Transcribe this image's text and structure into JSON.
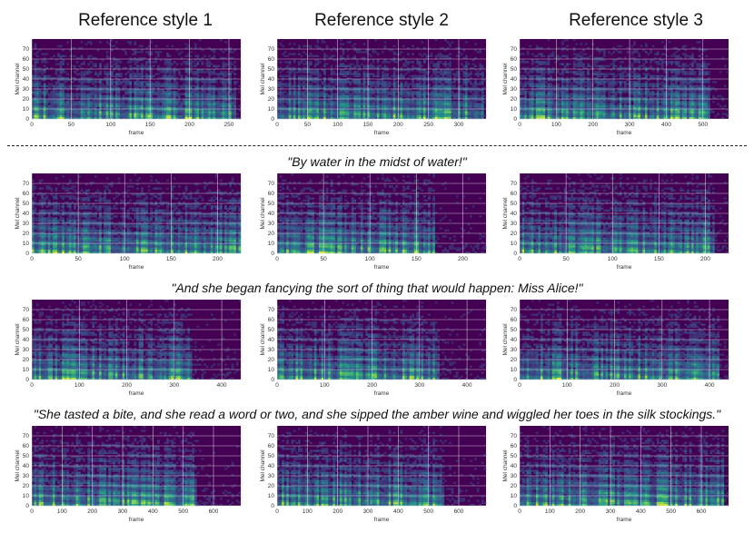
{
  "column_titles": [
    "Reference style 1",
    "Reference style 2",
    "Reference style 3"
  ],
  "captions": [
    "\"By water in the midst of water!\"",
    "\"And she began fancying the sort of thing that would happen: Miss Alice!\"",
    "\"She tasted a bite, and she read a word or two, and she sipped the amber wine and wiggled her toes in the silk stockings.\""
  ],
  "colors": {
    "background": "#440154",
    "grid": "#ffffff",
    "colormap": [
      "#440154",
      "#3b528b",
      "#21918c",
      "#5ec962",
      "#fde725"
    ]
  },
  "chart_data": [
    {
      "type": "heatmap",
      "id": "ref1",
      "row": "reference",
      "column": 1,
      "xlabel": "frame",
      "ylabel": "Mel channel",
      "xlim": [
        0,
        265
      ],
      "ylim": [
        0,
        80
      ],
      "xticks": [
        0,
        50,
        100,
        150,
        200,
        250
      ],
      "yticks": [
        0,
        10,
        20,
        30,
        40,
        50,
        60,
        70
      ],
      "seed": 11
    },
    {
      "type": "heatmap",
      "id": "ref2",
      "row": "reference",
      "column": 2,
      "xlabel": "frame",
      "ylabel": "Mel channel",
      "xlim": [
        0,
        345
      ],
      "ylim": [
        0,
        80
      ],
      "xticks": [
        0,
        50,
        100,
        150,
        200,
        250,
        300
      ],
      "yticks": [
        0,
        10,
        20,
        30,
        40,
        50,
        60,
        70
      ],
      "seed": 23
    },
    {
      "type": "heatmap",
      "id": "ref3",
      "row": "reference",
      "column": 3,
      "xlabel": "frame",
      "ylabel": "Mel channel",
      "xlim": [
        0,
        570
      ],
      "ylim": [
        0,
        80
      ],
      "xticks": [
        0,
        100,
        200,
        300,
        400,
        500
      ],
      "yticks": [
        0,
        10,
        20,
        30,
        40,
        50,
        60,
        70
      ],
      "seed": 37
    },
    {
      "type": "heatmap",
      "id": "s1c1",
      "row": "sentence 1",
      "column": 1,
      "xlabel": "frame",
      "ylabel": "Mel channel",
      "xlim": [
        0,
        225
      ],
      "ylim": [
        0,
        80
      ],
      "xticks": [
        0,
        50,
        100,
        150,
        200
      ],
      "yticks": [
        0,
        10,
        20,
        30,
        40,
        50,
        60,
        70
      ],
      "seed": 41
    },
    {
      "type": "heatmap",
      "id": "s1c2",
      "row": "sentence 1",
      "column": 2,
      "xlabel": "frame",
      "ylabel": "Mel channel",
      "xlim": [
        0,
        225
      ],
      "ylim": [
        0,
        80
      ],
      "xticks": [
        0,
        50,
        100,
        150,
        200
      ],
      "yticks": [
        0,
        10,
        20,
        30,
        40,
        50,
        60,
        70
      ],
      "seed": 53
    },
    {
      "type": "heatmap",
      "id": "s1c3",
      "row": "sentence 1",
      "column": 3,
      "xlabel": "frame",
      "ylabel": "Mel channel",
      "xlim": [
        0,
        225
      ],
      "ylim": [
        0,
        80
      ],
      "xticks": [
        0,
        50,
        100,
        150,
        200
      ],
      "yticks": [
        0,
        10,
        20,
        30,
        40,
        50,
        60,
        70
      ],
      "seed": 67
    },
    {
      "type": "heatmap",
      "id": "s2c1",
      "row": "sentence 2",
      "column": 1,
      "xlabel": "frame",
      "ylabel": "Mel channel",
      "xlim": [
        0,
        440
      ],
      "ylim": [
        0,
        80
      ],
      "xticks": [
        0,
        100,
        200,
        300,
        400
      ],
      "yticks": [
        0,
        10,
        20,
        30,
        40,
        50,
        60,
        70
      ],
      "seed": 71
    },
    {
      "type": "heatmap",
      "id": "s2c2",
      "row": "sentence 2",
      "column": 2,
      "xlabel": "frame",
      "ylabel": "Mel channel",
      "xlim": [
        0,
        440
      ],
      "ylim": [
        0,
        80
      ],
      "xticks": [
        0,
        100,
        200,
        300,
        400
      ],
      "yticks": [
        0,
        10,
        20,
        30,
        40,
        50,
        60,
        70
      ],
      "seed": 83
    },
    {
      "type": "heatmap",
      "id": "s2c3",
      "row": "sentence 2",
      "column": 3,
      "xlabel": "frame",
      "ylabel": "Mel channel",
      "xlim": [
        0,
        440
      ],
      "ylim": [
        0,
        80
      ],
      "xticks": [
        0,
        100,
        200,
        300,
        400
      ],
      "yticks": [
        0,
        10,
        20,
        30,
        40,
        50,
        60,
        70
      ],
      "seed": 97
    },
    {
      "type": "heatmap",
      "id": "s3c1",
      "row": "sentence 3",
      "column": 1,
      "xlabel": "frame",
      "ylabel": "Mel channel",
      "xlim": [
        0,
        690
      ],
      "ylim": [
        0,
        80
      ],
      "xticks": [
        0,
        100,
        200,
        300,
        400,
        500,
        600
      ],
      "yticks": [
        0,
        10,
        20,
        30,
        40,
        50,
        60,
        70
      ],
      "seed": 101
    },
    {
      "type": "heatmap",
      "id": "s3c2",
      "row": "sentence 3",
      "column": 2,
      "xlabel": "frame",
      "ylabel": "Mel channel",
      "xlim": [
        0,
        690
      ],
      "ylim": [
        0,
        80
      ],
      "xticks": [
        0,
        100,
        200,
        300,
        400,
        500,
        600
      ],
      "yticks": [
        0,
        10,
        20,
        30,
        40,
        50,
        60,
        70
      ],
      "seed": 113
    },
    {
      "type": "heatmap",
      "id": "s3c3",
      "row": "sentence 3",
      "column": 3,
      "xlabel": "frame",
      "ylabel": "Mel channel",
      "xlim": [
        0,
        690
      ],
      "ylim": [
        0,
        80
      ],
      "xticks": [
        0,
        100,
        200,
        300,
        400,
        500,
        600
      ],
      "yticks": [
        0,
        10,
        20,
        30,
        40,
        50,
        60,
        70
      ],
      "seed": 127
    }
  ]
}
